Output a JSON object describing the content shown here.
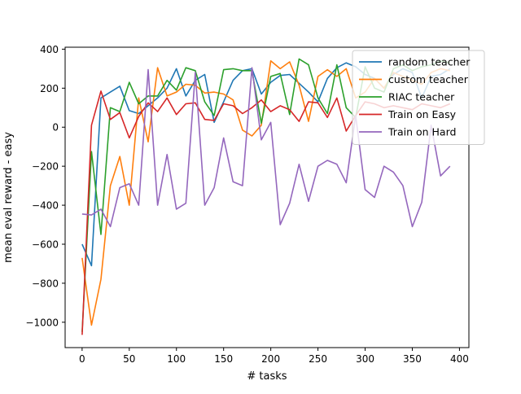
{
  "chart_data": {
    "type": "line",
    "title": "",
    "xlabel": "# tasks",
    "ylabel": "mean eval reward - easy",
    "xlim": [
      -18,
      410
    ],
    "ylim": [
      -1130,
      410
    ],
    "xticks": [
      0,
      50,
      100,
      150,
      200,
      250,
      300,
      350,
      400
    ],
    "xtick_labels": [
      "0",
      "50",
      "100",
      "150",
      "200",
      "250",
      "300",
      "350",
      "400"
    ],
    "yticks": [
      400,
      200,
      0,
      -200,
      -400,
      -600,
      -800,
      -1000
    ],
    "ytick_labels": [
      "400",
      "200",
      "0",
      "−200",
      "−400",
      "−600",
      "−800",
      "−1000"
    ],
    "grid": false,
    "legend_position": "top-right",
    "x": [
      0,
      10,
      20,
      30,
      40,
      50,
      60,
      70,
      80,
      90,
      100,
      110,
      120,
      130,
      140,
      150,
      160,
      170,
      180,
      190,
      200,
      210,
      220,
      230,
      240,
      250,
      260,
      270,
      280,
      290,
      300,
      310,
      320,
      330,
      340,
      350,
      360,
      370,
      380,
      390
    ],
    "series": [
      {
        "name": "random teacher",
        "color": "#1f77b4",
        "values": [
          -600,
          -710,
          150,
          180,
          210,
          85,
          70,
          110,
          150,
          200,
          300,
          160,
          240,
          270,
          25,
          130,
          240,
          290,
          300,
          170,
          230,
          265,
          270,
          225,
          180,
          130,
          250,
          305,
          330,
          310,
          270,
          250,
          200,
          270,
          300,
          280,
          150,
          260,
          270,
          300
        ]
      },
      {
        "name": "custom teacher",
        "color": "#ff7f0e",
        "values": [
          -670,
          -1015,
          -780,
          -300,
          -150,
          -400,
          150,
          -75,
          305,
          160,
          180,
          220,
          215,
          175,
          180,
          170,
          140,
          -15,
          -45,
          10,
          340,
          300,
          335,
          215,
          30,
          260,
          295,
          260,
          300,
          150,
          180,
          250,
          200,
          280,
          260,
          240,
          220,
          280,
          300,
          290
        ]
      },
      {
        "name": "RIAC teacher",
        "color": "#2ca02c",
        "values": [
          -1050,
          -125,
          -550,
          100,
          80,
          230,
          120,
          160,
          160,
          240,
          190,
          305,
          290,
          130,
          60,
          295,
          300,
          290,
          290,
          20,
          260,
          275,
          65,
          350,
          320,
          150,
          70,
          320,
          100,
          50,
          310,
          200,
          180,
          300,
          320,
          290,
          310,
          320,
          340,
          330
        ]
      },
      {
        "name": "Train on Easy",
        "color": "#d62728",
        "values": [
          -1065,
          10,
          185,
          40,
          75,
          -55,
          55,
          125,
          80,
          150,
          65,
          120,
          125,
          40,
          35,
          120,
          110,
          70,
          100,
          140,
          80,
          110,
          90,
          30,
          130,
          125,
          50,
          150,
          -20,
          60,
          130,
          120,
          100,
          110,
          100,
          90,
          120,
          110,
          100,
          120
        ]
      },
      {
        "name": "Train on Hard",
        "color": "#9467bd",
        "values": [
          -445,
          -450,
          -420,
          -510,
          -310,
          -290,
          -400,
          295,
          -400,
          -140,
          -420,
          -390,
          280,
          -400,
          -310,
          -55,
          -280,
          -300,
          305,
          -65,
          25,
          -500,
          -390,
          -190,
          -380,
          -200,
          -170,
          -190,
          -285,
          60,
          -320,
          -360,
          -200,
          -230,
          -300,
          -510,
          -385,
          10,
          -250,
          -200
        ]
      }
    ]
  }
}
